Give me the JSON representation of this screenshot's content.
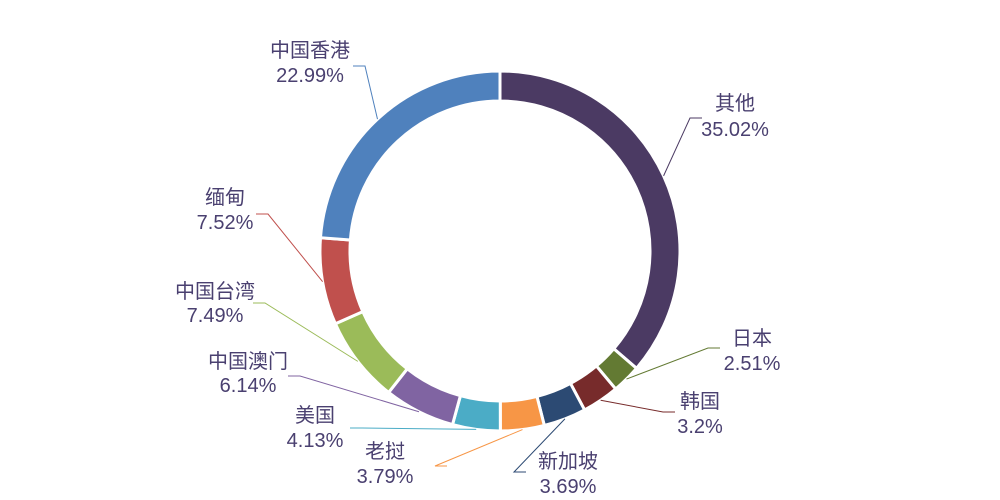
{
  "chart_data": {
    "type": "pie",
    "variant": "donut",
    "title": "",
    "start_angle_deg": 90,
    "direction": "clockwise",
    "slices": [
      {
        "label": "其他",
        "value": 35.02,
        "value_text": "35.02%",
        "color": "#4b3a63"
      },
      {
        "label": "日本",
        "value": 2.51,
        "value_text": "2.51%",
        "color": "#637a33"
      },
      {
        "label": "韩国",
        "value": 3.2,
        "value_text": "3.2%",
        "color": "#772b2b"
      },
      {
        "label": "新加坡",
        "value": 3.69,
        "value_text": "3.69%",
        "color": "#2c4a73"
      },
      {
        "label": "老挝",
        "value": 3.79,
        "value_text": "3.79%",
        "color": "#f79646"
      },
      {
        "label": "美国",
        "value": 4.13,
        "value_text": "4.13%",
        "color": "#4bacc6"
      },
      {
        "label": "中国澳门",
        "value": 6.14,
        "value_text": "6.14%",
        "color": "#8064a2"
      },
      {
        "label": "中国台湾",
        "value": 7.49,
        "value_text": "7.49%",
        "color": "#9bbb59"
      },
      {
        "label": "缅甸",
        "value": 7.52,
        "value_text": "7.52%",
        "color": "#c0504d"
      },
      {
        "label": "中国香港",
        "value": 22.99,
        "value_text": "22.99%",
        "color": "#4f81bd"
      }
    ]
  }
}
